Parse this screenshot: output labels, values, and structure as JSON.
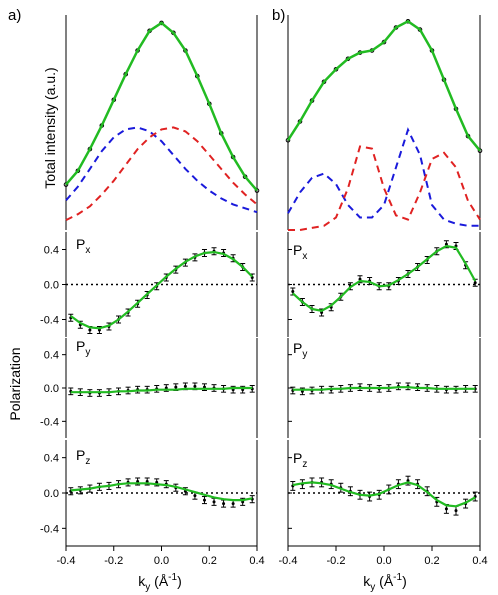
{
  "panel_labels": {
    "a": "a)",
    "b": "b)"
  },
  "axis_text": {
    "ylabel_top": "Total intensity (a.u.)",
    "ylabel_bottom": "Polarization",
    "xlabel_main": "k",
    "xlabel_sub": "y",
    "xlabel_unit_open": " (Å",
    "xlabel_unit_exp": "-1",
    "xlabel_unit_close": ")"
  },
  "row_labels": {
    "px_main": "P",
    "px_sub": "x",
    "py_main": "P",
    "py_sub": "y",
    "pz_main": "P",
    "pz_sub": "z"
  },
  "chart_data": [
    {
      "type": "line",
      "panel": "a",
      "role": "total-intensity",
      "xlim": [
        -0.4,
        0.4
      ],
      "series": [
        {
          "kind": "data",
          "color": "#000000",
          "x": [
            -0.4,
            -0.35,
            -0.3,
            -0.25,
            -0.2,
            -0.15,
            -0.1,
            -0.05,
            0.0,
            0.05,
            0.1,
            0.15,
            0.2,
            0.25,
            0.3,
            0.35,
            0.4
          ],
          "y": [
            0.18,
            0.25,
            0.36,
            0.48,
            0.61,
            0.74,
            0.86,
            0.96,
            1.0,
            0.95,
            0.86,
            0.73,
            0.59,
            0.44,
            0.32,
            0.22,
            0.15
          ]
        },
        {
          "kind": "fit",
          "color": "#22bb22",
          "x": [
            -0.4,
            -0.35,
            -0.3,
            -0.25,
            -0.2,
            -0.15,
            -0.1,
            -0.05,
            0.0,
            0.05,
            0.1,
            0.15,
            0.2,
            0.25,
            0.3,
            0.35,
            0.4
          ],
          "y": [
            0.18,
            0.25,
            0.36,
            0.48,
            0.61,
            0.74,
            0.86,
            0.96,
            1.0,
            0.95,
            0.86,
            0.73,
            0.59,
            0.44,
            0.32,
            0.22,
            0.15
          ]
        },
        {
          "kind": "component",
          "color": "#1a1adb",
          "x": [
            -0.4,
            -0.35,
            -0.3,
            -0.25,
            -0.2,
            -0.15,
            -0.1,
            -0.05,
            0.0,
            0.05,
            0.1,
            0.15,
            0.2,
            0.25,
            0.3,
            0.35,
            0.4
          ],
          "y": [
            0.1,
            0.17,
            0.26,
            0.35,
            0.42,
            0.46,
            0.47,
            0.45,
            0.4,
            0.33,
            0.26,
            0.2,
            0.15,
            0.11,
            0.08,
            0.06,
            0.04
          ]
        },
        {
          "kind": "component",
          "color": "#e02222",
          "x": [
            -0.4,
            -0.35,
            -0.3,
            -0.25,
            -0.2,
            -0.15,
            -0.1,
            -0.05,
            0.0,
            0.05,
            0.1,
            0.15,
            0.2,
            0.25,
            0.3,
            0.35,
            0.4
          ],
          "y": [
            0.0,
            0.03,
            0.07,
            0.13,
            0.2,
            0.28,
            0.36,
            0.42,
            0.46,
            0.47,
            0.45,
            0.4,
            0.33,
            0.26,
            0.19,
            0.13,
            0.08
          ]
        }
      ]
    },
    {
      "type": "line",
      "panel": "b",
      "role": "total-intensity",
      "xlim": [
        -0.4,
        0.4
      ],
      "series": [
        {
          "kind": "data",
          "color": "#000000",
          "x": [
            -0.4,
            -0.35,
            -0.3,
            -0.25,
            -0.2,
            -0.15,
            -0.1,
            -0.05,
            0.0,
            0.05,
            0.1,
            0.15,
            0.2,
            0.25,
            0.3,
            0.35,
            0.4
          ],
          "y": [
            0.43,
            0.52,
            0.62,
            0.71,
            0.77,
            0.82,
            0.85,
            0.86,
            0.9,
            0.97,
            1.0,
            0.96,
            0.86,
            0.72,
            0.58,
            0.45,
            0.38
          ]
        },
        {
          "kind": "fit",
          "color": "#22bb22",
          "x": [
            -0.4,
            -0.35,
            -0.3,
            -0.25,
            -0.2,
            -0.15,
            -0.1,
            -0.05,
            0.0,
            0.05,
            0.1,
            0.15,
            0.2,
            0.25,
            0.3,
            0.35,
            0.4
          ],
          "y": [
            0.43,
            0.52,
            0.62,
            0.71,
            0.77,
            0.82,
            0.85,
            0.86,
            0.9,
            0.97,
            1.0,
            0.96,
            0.86,
            0.72,
            0.58,
            0.45,
            0.38
          ]
        },
        {
          "kind": "component",
          "color": "#1a1adb",
          "x": [
            -0.4,
            -0.35,
            -0.3,
            -0.25,
            -0.2,
            -0.15,
            -0.1,
            -0.05,
            0.0,
            0.05,
            0.1,
            0.15,
            0.2,
            0.25,
            0.3,
            0.35,
            0.4
          ],
          "y": [
            0.08,
            0.18,
            0.25,
            0.27,
            0.22,
            0.12,
            0.06,
            0.06,
            0.12,
            0.3,
            0.48,
            0.36,
            0.12,
            0.05,
            0.03,
            0.02,
            0.02
          ]
        },
        {
          "kind": "component",
          "color": "#e02222",
          "x": [
            -0.4,
            -0.35,
            -0.3,
            -0.25,
            -0.2,
            -0.15,
            -0.1,
            -0.05,
            0.0,
            0.05,
            0.1,
            0.15,
            0.2,
            0.25,
            0.3,
            0.35,
            0.4
          ],
          "y": [
            0.0,
            0.0,
            0.01,
            0.02,
            0.06,
            0.2,
            0.4,
            0.39,
            0.2,
            0.07,
            0.05,
            0.18,
            0.34,
            0.37,
            0.3,
            0.14,
            0.05
          ]
        }
      ]
    },
    {
      "type": "line",
      "panel": "a",
      "role": "Px",
      "xlim": [
        -0.4,
        0.4
      ],
      "ylim": [
        -0.6,
        0.6
      ],
      "yticks": [
        "0.4",
        "0.0",
        "-0.4"
      ],
      "zero_line": true,
      "x": [
        -0.38,
        -0.34,
        -0.3,
        -0.26,
        -0.22,
        -0.18,
        -0.14,
        -0.1,
        -0.06,
        -0.02,
        0.02,
        0.06,
        0.1,
        0.14,
        0.18,
        0.22,
        0.26,
        0.3,
        0.34,
        0.38
      ],
      "y": [
        -0.38,
        -0.46,
        -0.52,
        -0.52,
        -0.48,
        -0.4,
        -0.32,
        -0.22,
        -0.12,
        -0.02,
        0.08,
        0.17,
        0.25,
        0.31,
        0.36,
        0.38,
        0.36,
        0.3,
        0.2,
        0.08
      ],
      "error": 0.04,
      "fit": [
        -0.36,
        -0.44,
        -0.49,
        -0.5,
        -0.47,
        -0.4,
        -0.31,
        -0.21,
        -0.11,
        -0.01,
        0.09,
        0.18,
        0.26,
        0.32,
        0.36,
        0.37,
        0.35,
        0.29,
        0.2,
        0.09
      ]
    },
    {
      "type": "line",
      "panel": "b",
      "role": "Px",
      "xlim": [
        -0.4,
        0.4
      ],
      "ylim": [
        -0.6,
        0.6
      ],
      "yticks": [
        "0.4",
        "0.0",
        "-0.4"
      ],
      "zero_line": true,
      "x": [
        -0.38,
        -0.34,
        -0.3,
        -0.26,
        -0.22,
        -0.18,
        -0.14,
        -0.1,
        -0.06,
        -0.02,
        0.02,
        0.06,
        0.1,
        0.14,
        0.18,
        0.22,
        0.26,
        0.3,
        0.34,
        0.38
      ],
      "y": [
        -0.08,
        -0.2,
        -0.28,
        -0.32,
        -0.26,
        -0.14,
        -0.02,
        0.06,
        0.04,
        -0.02,
        -0.02,
        0.04,
        0.12,
        0.2,
        0.28,
        0.38,
        0.46,
        0.44,
        0.22,
        0.02
      ],
      "error": 0.04,
      "fit": [
        -0.1,
        -0.2,
        -0.28,
        -0.3,
        -0.24,
        -0.14,
        -0.03,
        0.04,
        0.03,
        -0.02,
        -0.01,
        0.05,
        0.12,
        0.2,
        0.29,
        0.38,
        0.44,
        0.42,
        0.24,
        0.04
      ]
    },
    {
      "type": "line",
      "panel": "a",
      "role": "Py",
      "xlim": [
        -0.4,
        0.4
      ],
      "ylim": [
        -0.6,
        0.6
      ],
      "yticks": [
        "0.4",
        "0.0",
        "-0.4"
      ],
      "zero_line": false,
      "x": [
        -0.38,
        -0.34,
        -0.3,
        -0.26,
        -0.22,
        -0.18,
        -0.14,
        -0.1,
        -0.06,
        -0.02,
        0.02,
        0.06,
        0.1,
        0.14,
        0.18,
        0.22,
        0.26,
        0.3,
        0.34,
        0.38
      ],
      "y": [
        -0.04,
        -0.05,
        -0.06,
        -0.06,
        -0.05,
        -0.04,
        -0.03,
        -0.02,
        -0.02,
        -0.01,
        0.0,
        0.01,
        0.02,
        0.02,
        0.01,
        0.0,
        -0.01,
        -0.02,
        -0.02,
        -0.01
      ],
      "error": 0.04,
      "fit": [
        -0.05,
        -0.05,
        -0.05,
        -0.05,
        -0.05,
        -0.04,
        -0.04,
        -0.03,
        -0.03,
        -0.02,
        -0.02,
        -0.02,
        -0.01,
        -0.01,
        -0.01,
        -0.01,
        -0.01,
        0.0,
        0.0,
        0.0
      ]
    },
    {
      "type": "line",
      "panel": "b",
      "role": "Py",
      "xlim": [
        -0.4,
        0.4
      ],
      "ylim": [
        -0.6,
        0.6
      ],
      "yticks": [
        "0.4",
        "0.0",
        "-0.4"
      ],
      "zero_line": false,
      "x": [
        -0.38,
        -0.34,
        -0.3,
        -0.26,
        -0.22,
        -0.18,
        -0.14,
        -0.1,
        -0.06,
        -0.02,
        0.02,
        0.06,
        0.1,
        0.14,
        0.18,
        0.22,
        0.26,
        0.3,
        0.34,
        0.38
      ],
      "y": [
        -0.03,
        -0.04,
        -0.03,
        -0.02,
        -0.02,
        -0.01,
        0.0,
        0.01,
        0.0,
        -0.01,
        0.0,
        0.02,
        0.02,
        0.01,
        0.0,
        -0.01,
        -0.02,
        -0.02,
        -0.01,
        -0.01
      ],
      "error": 0.04,
      "fit": [
        -0.02,
        -0.02,
        -0.02,
        -0.02,
        -0.01,
        -0.01,
        0.0,
        0.0,
        0.0,
        0.0,
        0.0,
        0.01,
        0.01,
        0.0,
        0.0,
        -0.01,
        -0.01,
        -0.01,
        -0.01,
        -0.01
      ]
    },
    {
      "type": "line",
      "panel": "a",
      "role": "Pz",
      "xlim": [
        -0.4,
        0.4
      ],
      "ylim": [
        -0.6,
        0.6
      ],
      "yticks": [
        "0.4",
        "0.0",
        "-0.4"
      ],
      "zero_line": true,
      "x": [
        -0.38,
        -0.34,
        -0.3,
        -0.26,
        -0.22,
        -0.18,
        -0.14,
        -0.1,
        -0.06,
        -0.02,
        0.02,
        0.06,
        0.1,
        0.14,
        0.18,
        0.22,
        0.26,
        0.3,
        0.34,
        0.38
      ],
      "y": [
        0.02,
        0.03,
        0.05,
        0.07,
        0.08,
        0.1,
        0.12,
        0.13,
        0.13,
        0.12,
        0.1,
        0.06,
        0.02,
        -0.03,
        -0.08,
        -0.1,
        -0.12,
        -0.12,
        -0.1,
        -0.07
      ],
      "error": 0.04,
      "fit": [
        0.03,
        0.04,
        0.05,
        0.07,
        0.08,
        0.1,
        0.11,
        0.11,
        0.11,
        0.1,
        0.09,
        0.07,
        0.04,
        0.01,
        -0.02,
        -0.05,
        -0.07,
        -0.08,
        -0.08,
        -0.06
      ]
    },
    {
      "type": "line",
      "panel": "b",
      "role": "Pz",
      "xlim": [
        -0.4,
        0.4
      ],
      "ylim": [
        -0.6,
        0.6
      ],
      "yticks": [
        "0.4",
        "0.0",
        "-0.4"
      ],
      "zero_line": true,
      "x": [
        -0.38,
        -0.34,
        -0.3,
        -0.26,
        -0.22,
        -0.18,
        -0.14,
        -0.1,
        -0.06,
        -0.02,
        0.02,
        0.06,
        0.1,
        0.14,
        0.18,
        0.22,
        0.26,
        0.3,
        0.34,
        0.38
      ],
      "y": [
        0.08,
        0.1,
        0.12,
        0.12,
        0.1,
        0.06,
        0.02,
        -0.02,
        -0.04,
        -0.02,
        0.04,
        0.1,
        0.14,
        0.1,
        0.02,
        -0.1,
        -0.18,
        -0.2,
        -0.12,
        -0.04
      ],
      "error": 0.05,
      "fit": [
        0.09,
        0.11,
        0.12,
        0.11,
        0.09,
        0.05,
        0.01,
        -0.02,
        -0.03,
        -0.01,
        0.04,
        0.09,
        0.12,
        0.09,
        0.01,
        -0.08,
        -0.14,
        -0.15,
        -0.11,
        -0.05
      ]
    }
  ],
  "xticks": [
    "-0.4",
    "-0.2",
    "0.0",
    "0.2",
    "0.4"
  ]
}
